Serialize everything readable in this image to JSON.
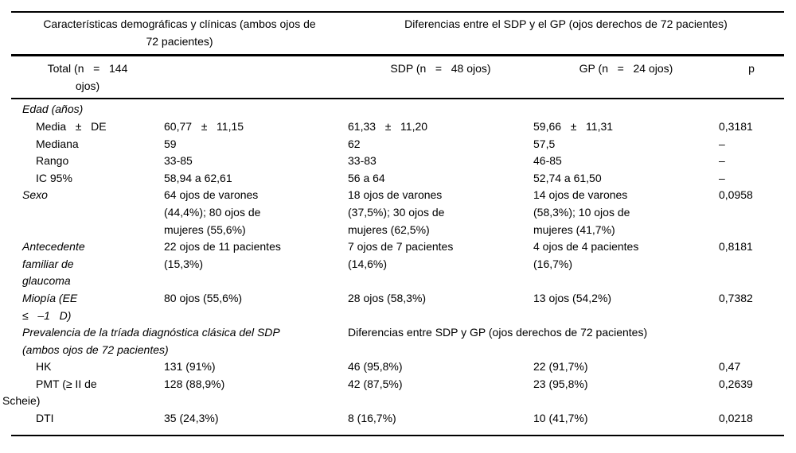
{
  "table": {
    "colors": {
      "text": "#000000",
      "rule": "#000000",
      "background": "#ffffff"
    },
    "group_headers": {
      "left": "Características demográficas y clínicas (ambos ojos de\n72 pacientes)",
      "right": "Diferencias entre el SDP y el GP (ojos derechos de 72 pacientes)"
    },
    "column_headers": {
      "total": "Total (n   =   144\nojos)",
      "sdp": "SDP (n   =   48 ojos)",
      "gp": "GP (n   =   24 ojos)",
      "p": "p"
    },
    "rows": [
      {
        "type": "section",
        "label": "Edad (años)"
      },
      {
        "type": "data",
        "label": "Media   ±   DE",
        "total": "60,77   ±   11,15",
        "sdp": "61,33   ±   11,20",
        "gp": "59,66   ±   11,31",
        "p": "0,3181"
      },
      {
        "type": "data",
        "label": "Mediana",
        "total": "59",
        "sdp": "62",
        "gp": "57,5",
        "p": "–"
      },
      {
        "type": "data",
        "label": "Rango",
        "total": "33-85",
        "sdp": "33-83",
        "gp": "46-85",
        "p": "–"
      },
      {
        "type": "data",
        "label": "IC 95%",
        "total": "58,94 a 62,61",
        "sdp": "56 a 64",
        "gp": "52,74 a 61,50",
        "p": "–"
      },
      {
        "type": "data",
        "label": "Sexo",
        "total": "64 ojos de varones\n(44,4%); 80 ojos de\nmujeres (55,6%)",
        "sdp": "18 ojos de varones\n(37,5%); 30 ojos de\nmujeres (62,5%)",
        "gp": "14 ojos de varones\n(58,3%); 10 ojos de\nmujeres (41,7%)",
        "p": "0,0958"
      },
      {
        "type": "data",
        "label": "Antecedente\nfamiliar de\nglaucoma",
        "total": "22 ojos de 11 pacientes\n(15,3%)",
        "sdp": "7 ojos de 7 pacientes\n(14,6%)",
        "gp": "4 ojos de 4 pacientes\n(16,7%)",
        "p": "0,8181"
      },
      {
        "type": "data",
        "label": "Miopía (EE\n≤   –1   D)",
        "total": "80 ojos (55,6%)",
        "sdp": "28 ojos (58,3%)",
        "gp": "13 ojos (54,2%)",
        "p": "0,7382"
      },
      {
        "type": "span",
        "left": "Prevalencia de la tríada diagnóstica clásica del SDP\n(ambos ojos de 72 pacientes)",
        "right": "Diferencias entre SDP y GP (ojos derechos de 72 pacientes)"
      },
      {
        "type": "data",
        "label": "HK",
        "total": "131 (91%)",
        "sdp": "46 (95,8%)",
        "gp": "22 (91,7%)",
        "p": "0,47"
      },
      {
        "type": "data",
        "label": "PMT (≥ II de\nScheie)",
        "total": "128 (88,9%)",
        "sdp": "42 (87,5%)",
        "gp": "23 (95,8%)",
        "p": "0,2639"
      },
      {
        "type": "data",
        "label": "DTI",
        "total": "35 (24,3%)",
        "sdp": "8 (16,7%)",
        "gp": "10 (41,7%)",
        "p": "0,0218"
      }
    ]
  }
}
